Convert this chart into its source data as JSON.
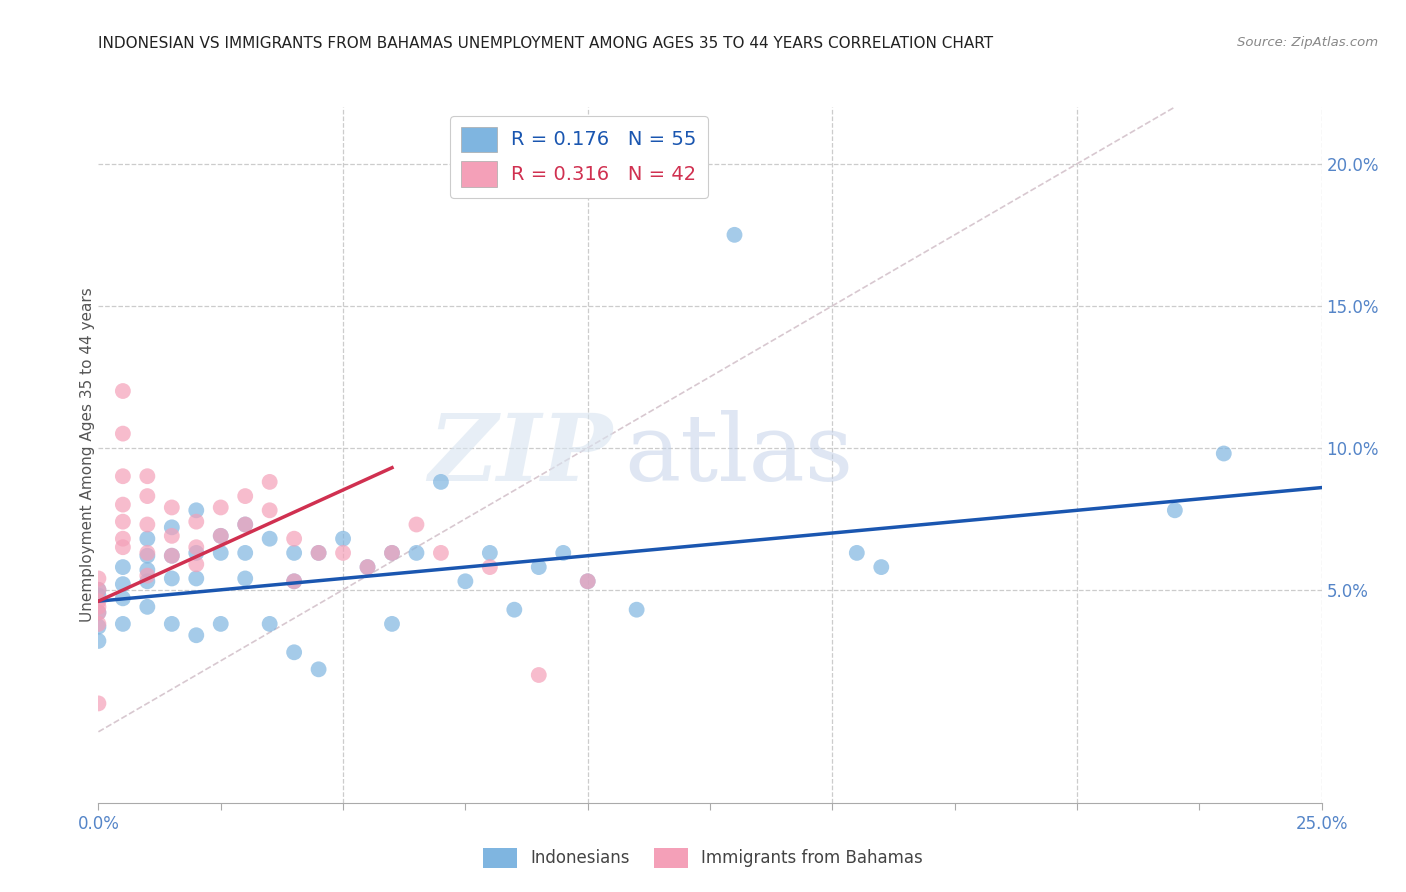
{
  "title": "INDONESIAN VS IMMIGRANTS FROM BAHAMAS UNEMPLOYMENT AMONG AGES 35 TO 44 YEARS CORRELATION CHART",
  "source": "Source: ZipAtlas.com",
  "ylabel": "Unemployment Among Ages 35 to 44 years",
  "xlim": [
    0.0,
    0.25
  ],
  "ylim": [
    -0.025,
    0.22
  ],
  "xticks": [
    0.0,
    0.025,
    0.05,
    0.075,
    0.1,
    0.125,
    0.15,
    0.175,
    0.2,
    0.225,
    0.25
  ],
  "xtick_labels": [
    "0.0%",
    "",
    "",
    "",
    "",
    "",
    "",
    "",
    "",
    "",
    "25.0%"
  ],
  "yticks_right": [
    0.05,
    0.1,
    0.15,
    0.2
  ],
  "ytick_labels_right": [
    "5.0%",
    "10.0%",
    "15.0%",
    "20.0%"
  ],
  "grid_yticks": [
    0.05,
    0.1,
    0.15,
    0.2
  ],
  "grid_xticks": [
    0.05,
    0.1,
    0.15,
    0.2,
    0.25
  ],
  "indonesians_x": [
    0.0,
    0.0,
    0.0,
    0.0,
    0.0,
    0.005,
    0.005,
    0.005,
    0.005,
    0.01,
    0.01,
    0.01,
    0.01,
    0.01,
    0.015,
    0.015,
    0.015,
    0.015,
    0.02,
    0.02,
    0.02,
    0.02,
    0.025,
    0.025,
    0.025,
    0.03,
    0.03,
    0.03,
    0.035,
    0.035,
    0.04,
    0.04,
    0.04,
    0.045,
    0.045,
    0.05,
    0.055,
    0.06,
    0.06,
    0.065,
    0.07,
    0.075,
    0.08,
    0.085,
    0.09,
    0.095,
    0.1,
    0.11,
    0.13,
    0.155,
    0.16,
    0.22,
    0.23
  ],
  "indonesians_y": [
    0.05,
    0.048,
    0.042,
    0.037,
    0.032,
    0.058,
    0.052,
    0.047,
    0.038,
    0.068,
    0.062,
    0.057,
    0.053,
    0.044,
    0.072,
    0.062,
    0.054,
    0.038,
    0.078,
    0.063,
    0.054,
    0.034,
    0.069,
    0.063,
    0.038,
    0.073,
    0.063,
    0.054,
    0.068,
    0.038,
    0.063,
    0.053,
    0.028,
    0.063,
    0.022,
    0.068,
    0.058,
    0.063,
    0.038,
    0.063,
    0.088,
    0.053,
    0.063,
    0.043,
    0.058,
    0.063,
    0.053,
    0.043,
    0.175,
    0.063,
    0.058,
    0.078,
    0.098
  ],
  "bahamas_x": [
    0.0,
    0.0,
    0.0,
    0.0,
    0.0,
    0.0,
    0.005,
    0.005,
    0.005,
    0.005,
    0.005,
    0.005,
    0.01,
    0.01,
    0.01,
    0.01,
    0.015,
    0.015,
    0.015,
    0.02,
    0.02,
    0.02,
    0.025,
    0.025,
    0.03,
    0.03,
    0.035,
    0.035,
    0.04,
    0.04,
    0.045,
    0.05,
    0.055,
    0.06,
    0.065,
    0.07,
    0.08,
    0.09,
    0.1,
    0.0,
    0.005,
    0.01
  ],
  "bahamas_y": [
    0.054,
    0.05,
    0.046,
    0.042,
    0.038,
    0.01,
    0.12,
    0.105,
    0.09,
    0.08,
    0.074,
    0.068,
    0.09,
    0.083,
    0.073,
    0.063,
    0.079,
    0.069,
    0.062,
    0.074,
    0.065,
    0.059,
    0.079,
    0.069,
    0.083,
    0.073,
    0.088,
    0.078,
    0.068,
    0.053,
    0.063,
    0.063,
    0.058,
    0.063,
    0.073,
    0.063,
    0.058,
    0.02,
    0.053,
    0.044,
    0.065,
    0.055
  ],
  "blue_line_x": [
    0.0,
    0.25
  ],
  "blue_line_y": [
    0.046,
    0.086
  ],
  "pink_line_x": [
    0.0,
    0.06
  ],
  "pink_line_y": [
    0.046,
    0.093
  ],
  "ref_line_x": [
    0.0,
    0.22
  ],
  "ref_line_y": [
    0.0,
    0.22
  ],
  "dot_color_blue": "#7fb5e0",
  "dot_color_pink": "#f4a0b8",
  "line_color_blue": "#1a56b0",
  "line_color_pink": "#d03050",
  "watermark_zip": "ZIP",
  "watermark_atlas": "atlas",
  "background_color": "#ffffff",
  "grid_color": "#cccccc",
  "tick_color": "#5585c8"
}
